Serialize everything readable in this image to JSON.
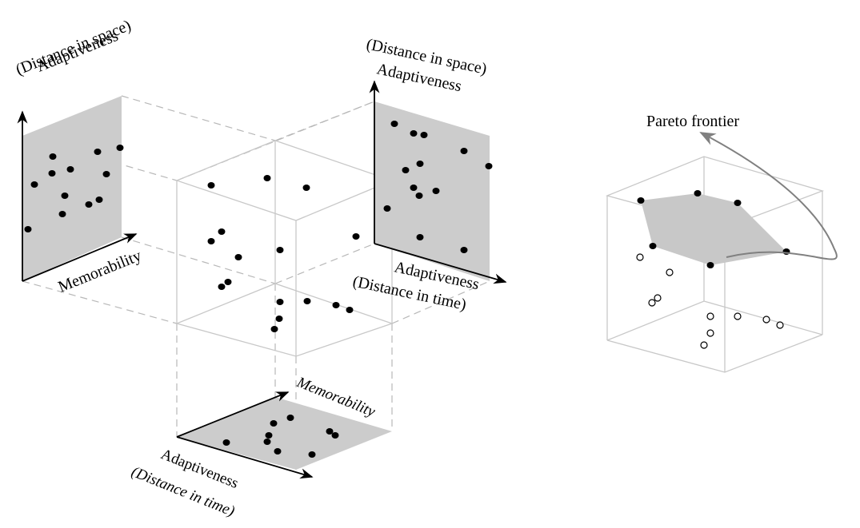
{
  "labels": {
    "left_panel": {
      "distance_space": "(Distance in space)",
      "adaptiveness": "Adaptiveness",
      "memorability": "Memorability"
    },
    "right_panel": {
      "distance_space": "(Distance in space)",
      "adaptiveness_top": "Adaptiveness",
      "adaptiveness_bottom": "Adaptiveness",
      "distance_time": "(Distance in time)"
    },
    "bottom_panel": {
      "memorability": "Memorability",
      "adaptiveness": "Adaptiveness",
      "distance_time": "(Distance in time)"
    },
    "pareto": {
      "title": "Pareto frontier"
    }
  },
  "colors": {
    "panel_fill": "#cccccc",
    "box_line": "#c8c8c8",
    "dash_line": "#b8b8b8",
    "point": "#000000",
    "arrow": "#000000",
    "pareto_fill": "#c8c8c8",
    "pareto_arrow": "#808080"
  },
  "icons": {
    "axis_arrow": "arrowhead-icon",
    "pareto_arrow": "curved-arrow-icon"
  }
}
